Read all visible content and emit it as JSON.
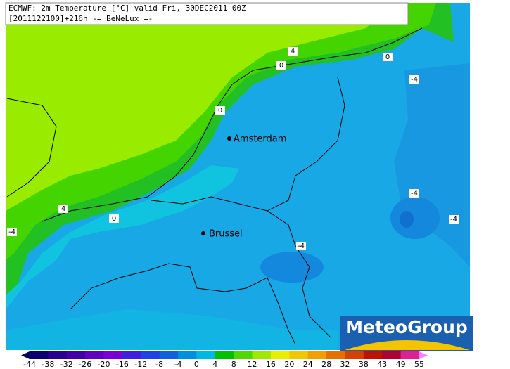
{
  "header": {
    "line1": "ECMWF: 2m Temperature [°C] valid Fri, 30DEC2011 00Z",
    "line2": "[2011122100]+216h -= BeNeLux =-"
  },
  "cities": [
    "Amsterdam",
    "Brussel"
  ],
  "contour_labels": [
    "4",
    "0",
    "0",
    "0",
    "-4",
    "0",
    "4",
    "-4",
    "-4",
    "-4",
    "-4",
    "0"
  ],
  "logo": "MeteoGroup",
  "colorbar": {
    "ticks": [
      "-44",
      "-38",
      "-32",
      "-26",
      "-20",
      "-16",
      "-12",
      "-8",
      "-4",
      "0",
      "4",
      "8",
      "12",
      "16",
      "20",
      "24",
      "28",
      "32",
      "38",
      "43",
      "49",
      "55"
    ],
    "colors": [
      "#0a0070",
      "#2a0090",
      "#4400a8",
      "#6000c0",
      "#7a00d8",
      "#4020e0",
      "#2040e8",
      "#1060e0",
      "#0090e0",
      "#00b8e8",
      "#00c000",
      "#50d800",
      "#a0e800",
      "#e8f000",
      "#f0c800",
      "#f0a000",
      "#e87000",
      "#d84000",
      "#c01000",
      "#b00030",
      "#e02090"
    ],
    "low_color": "#000060",
    "high_color": "#ff80ff"
  }
}
